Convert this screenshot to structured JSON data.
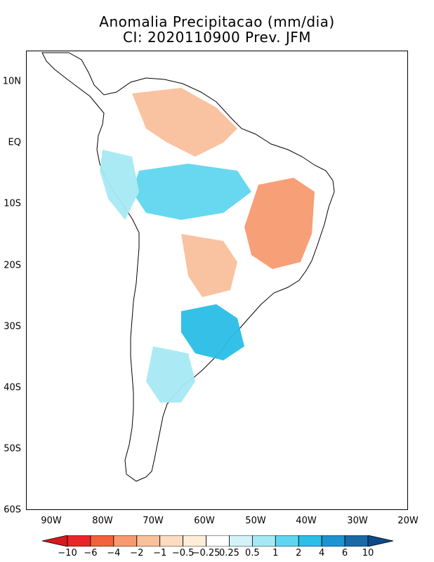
{
  "title": {
    "line1": "Anomalia Precipitacao (mm/dia)",
    "line2": "CI: 2020110900 Prev. JFM"
  },
  "map": {
    "lat_labels": [
      "10N",
      "EQ",
      "10S",
      "20S",
      "30S",
      "40S",
      "50S",
      "60S"
    ],
    "lon_labels": [
      "90W",
      "80W",
      "70W",
      "60W",
      "50W",
      "40W",
      "30W",
      "20W"
    ],
    "land_color": "#ffffff",
    "coast_color": "#000000"
  },
  "colorbar": {
    "ticks": [
      "−10",
      "−6",
      "−4",
      "−2",
      "−1",
      "−0.5",
      "−0.25",
      "0.25",
      "0.5",
      "1",
      "2",
      "4",
      "6",
      "10"
    ],
    "colors": [
      "#e8262a",
      "#f2603c",
      "#f79a6f",
      "#f9c09c",
      "#fbdcc0",
      "#fdedd9",
      "#ffffff",
      "#d3f3f8",
      "#a6e9f4",
      "#5fd6ef",
      "#2bbee6",
      "#1d94d0",
      "#1b6aa8"
    ],
    "end_low": "#d7191c",
    "end_high": "#0b4b88"
  }
}
